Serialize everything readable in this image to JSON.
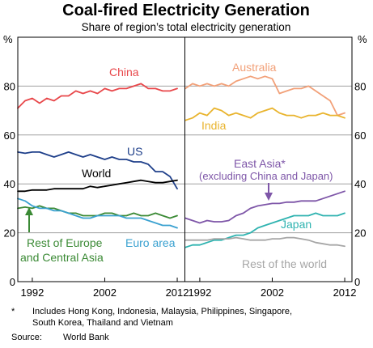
{
  "title": "Coal-fired Electricity Generation",
  "subtitle": "Share of region’s total electricity generation",
  "y_unit": "%",
  "footnote_marker": "*",
  "footnote_line1": "Includes Hong Kong, Indonesia, Malaysia, Philippines, Singapore,",
  "footnote_line2": "South Korea, Thailand and Vietnam",
  "source_label": "Source:",
  "source_value": "World Bank",
  "colors": {
    "china": "#e8474a",
    "us": "#1e3f8a",
    "world": "#000000",
    "rest_of_europe": "#3b8a35",
    "euro_area": "#3aa1d0",
    "australia": "#f2a078",
    "india": "#e9b42e",
    "east_asia": "#7e56a8",
    "japan": "#2fb3b0",
    "rest_of_world": "#a6a6a6"
  },
  "chart_data": [
    {
      "type": "line",
      "panel": "left",
      "ylim": [
        0,
        100
      ],
      "yticks": [
        0,
        20,
        40,
        60,
        80,
        100
      ],
      "xlim": [
        1990,
        2013
      ],
      "xticks": [
        "1992",
        "2002",
        "2012"
      ],
      "annotations": [
        {
          "text": "China",
          "series": "china"
        },
        {
          "text": "US",
          "series": "us"
        },
        {
          "text": "World",
          "series": "world"
        },
        {
          "text": "Rest of Europe",
          "series": "rest_of_europe"
        },
        {
          "text": "and Central Asia",
          "series": "rest_of_europe"
        },
        {
          "text": "Euro area",
          "series": "euro_area"
        }
      ],
      "series": [
        {
          "key": "china",
          "name": "China",
          "x": [
            1990,
            1991,
            1992,
            1993,
            1994,
            1995,
            1996,
            1997,
            1998,
            1999,
            2000,
            2001,
            2002,
            2003,
            2004,
            2005,
            2006,
            2007,
            2008,
            2009,
            2010,
            2011,
            2012
          ],
          "values": [
            71,
            74,
            75,
            73,
            75,
            74,
            76,
            76,
            78,
            77,
            78,
            77,
            79,
            78,
            79,
            79,
            80,
            81,
            79,
            79,
            78,
            78,
            79
          ]
        },
        {
          "key": "us",
          "name": "US",
          "x": [
            1990,
            1991,
            1992,
            1993,
            1994,
            1995,
            1996,
            1997,
            1998,
            1999,
            2000,
            2001,
            2002,
            2003,
            2004,
            2005,
            2006,
            2007,
            2008,
            2009,
            2010,
            2011,
            2012
          ],
          "values": [
            53,
            52.5,
            53,
            53,
            52,
            51,
            52,
            53,
            52,
            51,
            52,
            51,
            50,
            51,
            50,
            50,
            49,
            49,
            48,
            45,
            45,
            43,
            38
          ]
        },
        {
          "key": "world",
          "name": "World",
          "x": [
            1990,
            1991,
            1992,
            1993,
            1994,
            1995,
            1996,
            1997,
            1998,
            1999,
            2000,
            2001,
            2002,
            2003,
            2004,
            2005,
            2006,
            2007,
            2008,
            2009,
            2010,
            2011,
            2012
          ],
          "values": [
            37,
            37,
            37.5,
            37.5,
            37.5,
            38,
            38,
            38,
            38,
            38,
            39,
            38.5,
            39,
            39.5,
            40,
            40.5,
            41,
            41.5,
            41,
            40.5,
            40.5,
            41,
            41.5
          ]
        },
        {
          "key": "rest_of_europe",
          "name": "Rest of Europe and Central Asia",
          "x": [
            1990,
            1991,
            1992,
            1993,
            1994,
            1995,
            1996,
            1997,
            1998,
            1999,
            2000,
            2001,
            2002,
            2003,
            2004,
            2005,
            2006,
            2007,
            2008,
            2009,
            2010,
            2011,
            2012
          ],
          "values": [
            30,
            30.5,
            30,
            31,
            30,
            30,
            29,
            28,
            28,
            27,
            27,
            27,
            28,
            28,
            27,
            27,
            28,
            27,
            27,
            28,
            27,
            26,
            27
          ]
        },
        {
          "key": "euro_area",
          "name": "Euro area",
          "x": [
            1990,
            1991,
            1992,
            1993,
            1994,
            1995,
            1996,
            1997,
            1998,
            1999,
            2000,
            2001,
            2002,
            2003,
            2004,
            2005,
            2006,
            2007,
            2008,
            2009,
            2010,
            2011,
            2012
          ],
          "values": [
            34,
            33,
            31,
            30,
            30,
            29,
            29,
            28,
            27,
            26,
            26,
            27,
            27,
            27,
            27,
            26,
            26,
            26,
            25,
            24,
            23,
            23,
            22
          ]
        }
      ]
    },
    {
      "type": "line",
      "panel": "right",
      "ylim": [
        0,
        100
      ],
      "yticks": [
        0,
        20,
        40,
        60,
        80,
        100
      ],
      "xlim": [
        1990,
        2013
      ],
      "xticks": [
        "1992",
        "2002",
        "2012"
      ],
      "annotations": [
        {
          "text": "Australia",
          "series": "australia"
        },
        {
          "text": "India",
          "series": "india"
        },
        {
          "text": "East Asia*",
          "series": "east_asia"
        },
        {
          "text": "(excluding China and Japan)",
          "series": "east_asia"
        },
        {
          "text": "Japan",
          "series": "japan"
        },
        {
          "text": "Rest of the world",
          "series": "rest_of_world"
        }
      ],
      "series": [
        {
          "key": "australia",
          "name": "Australia",
          "x": [
            1990,
            1991,
            1992,
            1993,
            1994,
            1995,
            1996,
            1997,
            1998,
            1999,
            2000,
            2001,
            2002,
            2003,
            2004,
            2005,
            2006,
            2007,
            2008,
            2009,
            2010,
            2011,
            2012
          ],
          "values": [
            79,
            81,
            80,
            81,
            80,
            81,
            80,
            82,
            83,
            84,
            83,
            84,
            83,
            77,
            78,
            79,
            79,
            80,
            78,
            76,
            74,
            68,
            69
          ]
        },
        {
          "key": "india",
          "name": "India",
          "x": [
            1990,
            1991,
            1992,
            1993,
            1994,
            1995,
            1996,
            1997,
            1998,
            1999,
            2000,
            2001,
            2002,
            2003,
            2004,
            2005,
            2006,
            2007,
            2008,
            2009,
            2010,
            2011,
            2012
          ],
          "values": [
            66,
            67,
            69,
            68,
            71,
            70,
            68,
            69,
            68,
            67,
            69,
            70,
            71,
            69,
            68,
            68,
            67,
            68,
            68,
            69,
            68,
            68,
            67
          ]
        },
        {
          "key": "east_asia",
          "name": "East Asia (excluding China and Japan)",
          "x": [
            1990,
            1991,
            1992,
            1993,
            1994,
            1995,
            1996,
            1997,
            1998,
            1999,
            2000,
            2001,
            2002,
            2003,
            2004,
            2005,
            2006,
            2007,
            2008,
            2009,
            2010,
            2011,
            2012
          ],
          "values": [
            26,
            25,
            24,
            25,
            24.5,
            24.5,
            25,
            27,
            28,
            30,
            31,
            31.5,
            32,
            32,
            32.5,
            32.5,
            33,
            33,
            33,
            34,
            35,
            36,
            37
          ]
        },
        {
          "key": "japan",
          "name": "Japan",
          "x": [
            1990,
            1991,
            1992,
            1993,
            1994,
            1995,
            1996,
            1997,
            1998,
            1999,
            2000,
            2001,
            2002,
            2003,
            2004,
            2005,
            2006,
            2007,
            2008,
            2009,
            2010,
            2011,
            2012
          ],
          "values": [
            14,
            15,
            15,
            16,
            17,
            17,
            18,
            19,
            19,
            20,
            22,
            23,
            24,
            25,
            26,
            27,
            27,
            27,
            28,
            27,
            27,
            27,
            28
          ]
        },
        {
          "key": "rest_of_world",
          "name": "Rest of the world",
          "x": [
            1990,
            1991,
            1992,
            1993,
            1994,
            1995,
            1996,
            1997,
            1998,
            1999,
            2000,
            2001,
            2002,
            2003,
            2004,
            2005,
            2006,
            2007,
            2008,
            2009,
            2010,
            2011,
            2012
          ],
          "values": [
            17,
            17,
            17,
            17,
            17.5,
            17.5,
            17.5,
            18,
            17.5,
            17,
            17,
            17,
            17.5,
            17.5,
            18,
            18,
            17.5,
            17,
            16,
            15.5,
            15,
            15,
            14.5
          ]
        }
      ]
    }
  ]
}
